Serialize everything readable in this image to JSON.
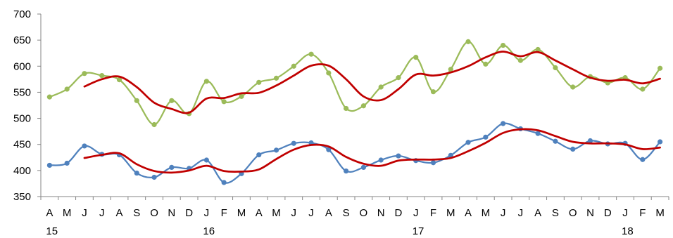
{
  "chart_data": {
    "type": "line",
    "title": "",
    "xlabel": "",
    "ylabel": "",
    "ylim": [
      350,
      700
    ],
    "yticks": [
      350,
      400,
      450,
      500,
      550,
      600,
      650,
      700
    ],
    "grid": false,
    "categories": [
      "A",
      "M",
      "J",
      "J",
      "A",
      "S",
      "O",
      "N",
      "D",
      "J",
      "F",
      "M",
      "A",
      "M",
      "J",
      "J",
      "A",
      "S",
      "O",
      "N",
      "D",
      "J",
      "F",
      "M",
      "A",
      "M",
      "J",
      "J",
      "A",
      "S",
      "O",
      "N",
      "D",
      "J",
      "F",
      "M"
    ],
    "year_labels": [
      {
        "index": 0,
        "label": "15"
      },
      {
        "index": 9,
        "label": "16"
      },
      {
        "index": 21,
        "label": "17"
      },
      {
        "index": 33,
        "label": "18"
      }
    ],
    "series": [
      {
        "color": "#9BBB59",
        "markers": true,
        "values": [
          541,
          556,
          586,
          582,
          574,
          534,
          488,
          534,
          509,
          571,
          532,
          542,
          569,
          577,
          600,
          623,
          587,
          519,
          524,
          560,
          578,
          617,
          551,
          594,
          647,
          604,
          640,
          611,
          632,
          597,
          560,
          580,
          568,
          578,
          556,
          596
        ]
      },
      {
        "color": "#C00000",
        "markers": false,
        "values": [
          null,
          null,
          561,
          575,
          580,
          560,
          530,
          518,
          511,
          538,
          539,
          548,
          549,
          563,
          582,
          601,
          601,
          575,
          542,
          535,
          556,
          584,
          582,
          588,
          600,
          617,
          628,
          619,
          627,
          611,
          594,
          578,
          572,
          574,
          567,
          576
        ]
      },
      {
        "color": "#4F81BD",
        "markers": true,
        "values": [
          410,
          414,
          447,
          431,
          430,
          395,
          387,
          406,
          404,
          420,
          377,
          394,
          430,
          439,
          452,
          453,
          440,
          399,
          406,
          420,
          428,
          419,
          415,
          429,
          454,
          464,
          490,
          480,
          471,
          456,
          441,
          457,
          451,
          452,
          421,
          455
        ]
      },
      {
        "color": "#C00000",
        "markers": false,
        "values": [
          null,
          null,
          424,
          430,
          433,
          412,
          399,
          396,
          400,
          409,
          399,
          398,
          402,
          422,
          440,
          449,
          446,
          426,
          413,
          409,
          419,
          421,
          421,
          424,
          437,
          453,
          472,
          479,
          477,
          466,
          455,
          452,
          452,
          450,
          441,
          444
        ]
      }
    ]
  }
}
